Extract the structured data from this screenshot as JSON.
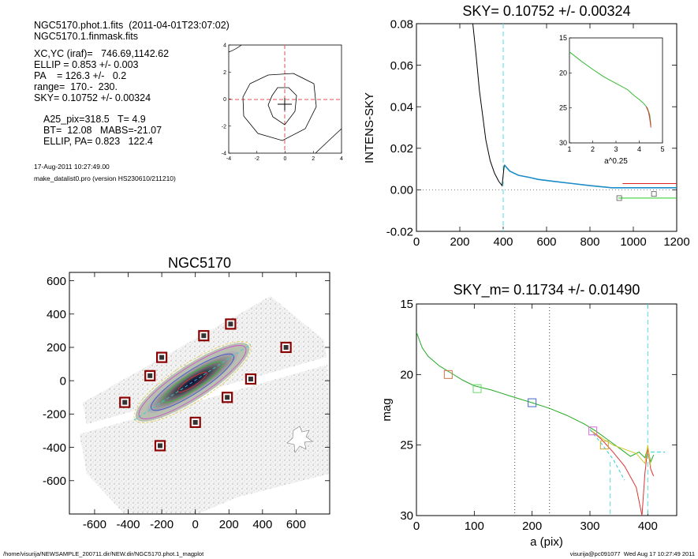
{
  "header": {
    "line1": "NGC5170.phot.1.fits  (2011-04-01T23:07:02)",
    "line2": "NGC5170.1.finmask.fits",
    "line3": "XC,YC (iraf)=   746.69,1142.62",
    "line4": "ELLIP = 0.853 +/- 0.003",
    "line5": "PA    = 126.3 +/-   0.2",
    "line6": "range=  170.-  230.",
    "line7": "SKY= 0.10752 +/- 0.00324",
    "line8": "A25_pix=318.5   T= 4.9",
    "line9": "BT=  12.08   MABS=-21.07",
    "line10": "ELLIP, PA= 0.823   122.4",
    "date": "17-Aug-2011 10:27:49.00",
    "program": "make_datalist0.pro (version HS230610/211210)"
  },
  "footer": {
    "left": "/home/visurija/NEWSAMPLE_200711.dir/NEW.dir/NGC5170.phot.1_magplot",
    "right": "visurija@pc091077  Wed Aug 17 10:27:49 2011"
  },
  "chart_data": [
    {
      "type": "line",
      "id": "center-contour",
      "xticks": [
        "-4",
        "-2",
        "0",
        "2",
        "4"
      ],
      "yticks": [
        "4",
        "2",
        "0",
        "-2",
        "-4"
      ],
      "xlim": [
        -4,
        4
      ],
      "ylim": [
        -4,
        4
      ]
    },
    {
      "type": "line",
      "id": "sky-profile",
      "title": "SKY= 0.10752 +/- 0.00324",
      "ylabel": "INTENS-SKY",
      "xlim": [
        0,
        1200
      ],
      "ylim": [
        -0.02,
        0.08
      ],
      "xticks": [
        "0",
        "200",
        "400",
        "600",
        "800",
        "1000",
        "1200"
      ],
      "yticks": [
        "0.08",
        "0.06",
        "0.04",
        "0.02",
        "0.00",
        "-0.02"
      ],
      "vline_x": 400,
      "series": [
        {
          "color": "#000000",
          "x": [
            260,
            275,
            290,
            305,
            320,
            340,
            360,
            380,
            395,
            405
          ],
          "y": [
            0.08,
            0.065,
            0.048,
            0.036,
            0.024,
            0.014,
            0.008,
            0.004,
            0.002,
            0.012
          ]
        },
        {
          "color": "#1a8cc8",
          "x": [
            405,
            430,
            470,
            520,
            560,
            640,
            720,
            800,
            900,
            1000,
            1200
          ],
          "y": [
            0.012,
            0.009,
            0.007,
            0.006,
            0.005,
            0.004,
            0.003,
            0.002,
            0.001,
            0.001,
            0.001
          ]
        },
        {
          "color": "#22cc22",
          "x": [
            930,
            1200
          ],
          "y": [
            -0.004,
            -0.004
          ]
        },
        {
          "color": "#dd2222",
          "x": [
            950,
            1200
          ],
          "y": [
            0.003,
            0.003
          ]
        }
      ],
      "markers": [
        {
          "color": "#555555",
          "x": 935,
          "y": -0.004
        },
        {
          "color": "#555555",
          "x": 1095,
          "y": -0.002
        }
      ],
      "inset": {
        "xlabel": "a^0.25",
        "xlim": [
          1,
          5
        ],
        "ylim": [
          15,
          30
        ],
        "xticks": [
          "1",
          "2",
          "3",
          "4",
          "5"
        ],
        "yticks": [
          "15",
          "20",
          "25",
          "30"
        ],
        "series_x": [
          1.0,
          1.5,
          2.0,
          2.5,
          3.0,
          3.5,
          3.8,
          4.0,
          4.2,
          4.35,
          4.45,
          4.5
        ],
        "series_y": [
          17.0,
          18.3,
          19.5,
          20.6,
          21.5,
          22.4,
          23.3,
          23.8,
          24.4,
          25.0,
          26.0,
          27.5
        ]
      }
    },
    {
      "type": "heatmap",
      "id": "galaxy-image",
      "title": "NGC5170",
      "xlim": [
        -750,
        800
      ],
      "ylim": [
        -800,
        650
      ],
      "xticks": [
        "-600",
        "-400",
        "-200",
        "0",
        "200",
        "400",
        "600"
      ],
      "yticks": [
        "600",
        "400",
        "200",
        "0",
        "-200",
        "-400",
        "-600"
      ],
      "stars": [
        [
          50,
          270
        ],
        [
          210,
          340
        ],
        [
          -200,
          140
        ],
        [
          -270,
          30
        ],
        [
          540,
          200
        ],
        [
          330,
          10
        ],
        [
          190,
          -100
        ],
        [
          -420,
          -130
        ],
        [
          0,
          -250
        ],
        [
          -210,
          -390
        ]
      ]
    },
    {
      "type": "line",
      "id": "mag-profile",
      "title": "SKY_m=  0.11734 +/- 0.01490",
      "xlabel": "a (pix)",
      "ylabel": "mag",
      "xlim": [
        0,
        450
      ],
      "ylim": [
        15,
        30
      ],
      "xticks": [
        "0",
        "100",
        "200",
        "300",
        "400"
      ],
      "yticks": [
        "15",
        "20",
        "25",
        "30"
      ],
      "vlines_dotted": [
        170,
        230
      ],
      "vline_cyan": 400,
      "series": [
        {
          "color": "#22aa22",
          "x": [
            0,
            10,
            20,
            40,
            60,
            80,
            100,
            130,
            160,
            200,
            230,
            260,
            290,
            310,
            330,
            350,
            370,
            385,
            395,
            400,
            405,
            410
          ],
          "y": [
            17.0,
            18.1,
            18.7,
            19.4,
            19.9,
            20.4,
            20.8,
            21.1,
            21.5,
            22.0,
            22.4,
            22.9,
            23.5,
            24.0,
            24.6,
            25.2,
            25.8,
            25.5,
            25.9,
            25.2,
            26.2,
            25.7
          ]
        },
        {
          "color": "#dd3333",
          "x": [
            300,
            320,
            340,
            360,
            380,
            390,
            395,
            400,
            405,
            410
          ],
          "y": [
            23.9,
            24.6,
            25.5,
            26.5,
            28.0,
            30.0,
            27.0,
            25.2,
            26.7,
            27.2
          ]
        },
        {
          "color": "#cccc33",
          "x": [
            300,
            320,
            340,
            360,
            380,
            395,
            400,
            405
          ],
          "y": [
            23.9,
            24.5,
            25.0,
            25.3,
            25.6,
            26.3,
            25.0,
            26.5
          ]
        },
        {
          "color": "#33cccc",
          "x": [
            300,
            320,
            340,
            360
          ],
          "y": [
            23.9,
            24.9,
            26.0,
            27.5
          ]
        }
      ],
      "markers": [
        {
          "color": "#cc7744",
          "x": 55,
          "y": 20.0
        },
        {
          "color": "#66dd66",
          "x": 105,
          "y": 21.0
        },
        {
          "color": "#4466cc",
          "x": 200,
          "y": 22.0
        },
        {
          "color": "#dd66dd",
          "x": 305,
          "y": 24.0
        },
        {
          "color": "#ccaa33",
          "x": 325,
          "y": 25.0
        }
      ]
    }
  ]
}
